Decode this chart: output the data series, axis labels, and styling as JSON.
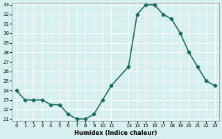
{
  "x": [
    0,
    1,
    2,
    3,
    4,
    5,
    6,
    7,
    8,
    9,
    10,
    11,
    13,
    14,
    15,
    16,
    17,
    18,
    19,
    20,
    21,
    22,
    23
  ],
  "y": [
    24,
    23,
    23,
    23,
    22.5,
    22.5,
    21.5,
    21,
    21,
    21.5,
    23,
    24.5,
    26.5,
    32,
    33,
    33,
    32,
    31.5,
    30,
    28,
    26.5,
    25,
    24.5
  ],
  "xlabel": "Humidex (Indice chaleur)",
  "ylim": [
    21,
    33
  ],
  "yticks": [
    21,
    22,
    23,
    24,
    25,
    26,
    27,
    28,
    29,
    30,
    31,
    32,
    33
  ],
  "xticks": [
    0,
    1,
    2,
    3,
    4,
    5,
    6,
    7,
    8,
    9,
    10,
    11,
    13,
    14,
    15,
    16,
    17,
    18,
    19,
    20,
    21,
    22,
    23
  ],
  "xlim": [
    -0.5,
    23.5
  ],
  "line_color": "#1a6b5e",
  "marker": "D",
  "marker_size": 2.5,
  "bg_color": "#d6f0f0",
  "grid_color": "#ffffff",
  "line_width": 1.2
}
